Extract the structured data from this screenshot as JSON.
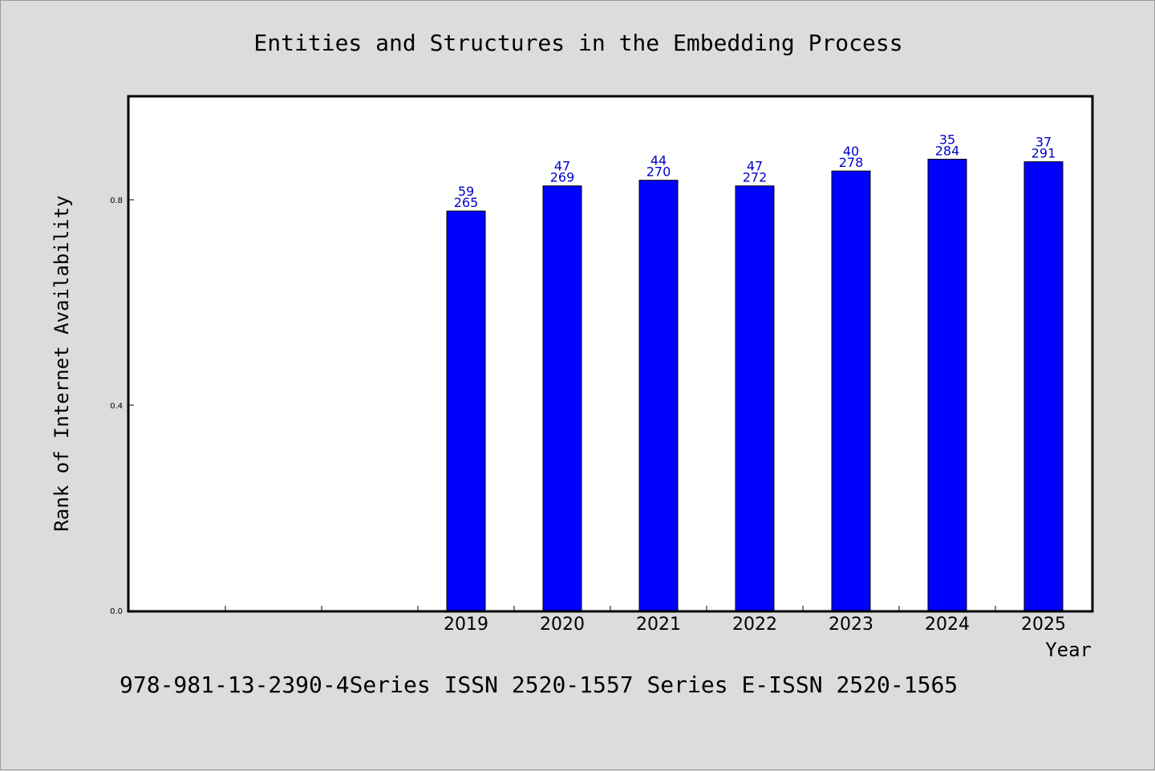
{
  "chart_data": {
    "type": "bar",
    "title": "Entities and Structures in the Embedding Process",
    "xlabel": "Year",
    "ylabel": "Rank of Internet Availability",
    "footer": "978-981-13-2390-4Series ISSN 2520-1557 Series E-ISSN 2520-1565",
    "categories": [
      "",
      "",
      "",
      "2019",
      "2020",
      "2021",
      "2022",
      "2023",
      "2024",
      "2025"
    ],
    "values": [
      null,
      null,
      null,
      0.778,
      0.827,
      0.838,
      0.827,
      0.856,
      0.879,
      0.874
    ],
    "labels_top": [
      "",
      "",
      "",
      "59",
      "47",
      "44",
      "47",
      "40",
      "35",
      "37"
    ],
    "labels_bottom": [
      "",
      "",
      "",
      "265",
      "269",
      "270",
      "272",
      "278",
      "284",
      "291"
    ],
    "yticks": [
      0.0,
      0.4,
      0.8
    ],
    "ytick_labels": [
      "0.0",
      "0.4",
      "0.8"
    ],
    "ylim": [
      0,
      1.0
    ],
    "grid": false,
    "bar_color": "#0000ff",
    "label_color": "#0000cc",
    "background": "#dcdcdc",
    "plot_background": "#ffffff"
  }
}
